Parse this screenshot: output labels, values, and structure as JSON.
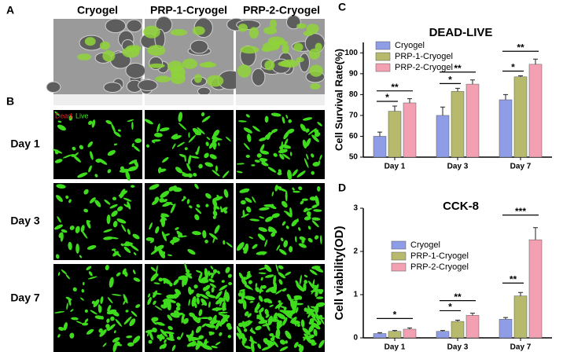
{
  "figure": {
    "panel_labels": [
      "A",
      "B",
      "C",
      "D"
    ],
    "columns": [
      "Cryogel",
      "PRP-1-Cryogel",
      "PRP-2-Cryogel"
    ],
    "rows": [
      "Day 1",
      "Day 3",
      "Day 7"
    ],
    "stain_labels": [
      "Dead",
      "Live"
    ]
  },
  "chart_data": [
    {
      "type": "bar",
      "title": "DEAD-LIVE",
      "y_label": "Cell Survival Rate(%)",
      "categories": [
        "Day 1",
        "Day 3",
        "Day 7"
      ],
      "series": [
        {
          "name": "Cryogel",
          "color": "#8e9de6",
          "values": [
            60,
            70,
            77.5
          ],
          "errors": [
            2,
            4,
            2.5
          ]
        },
        {
          "name": "PRP-1-Cryogel",
          "color": "#b7b96c",
          "values": [
            72,
            81.5,
            88.5
          ],
          "errors": [
            2.5,
            1.5,
            0.5
          ]
        },
        {
          "name": "PRP-2-Cryogel",
          "color": "#f3a1b2",
          "values": [
            76,
            85,
            94.5
          ],
          "errors": [
            2,
            2,
            2.5
          ]
        }
      ],
      "ylim": [
        50,
        105
      ],
      "yticks": [
        50,
        60,
        70,
        80,
        90,
        100
      ],
      "annotations": [
        {
          "text": "*",
          "category": "Day 1",
          "between": [
            "Cryogel",
            "PRP-1-Cryogel"
          ]
        },
        {
          "text": "**",
          "category": "Day 1",
          "between": [
            "Cryogel",
            "PRP-2-Cryogel"
          ]
        },
        {
          "text": "*",
          "category": "Day 3",
          "between": [
            "Cryogel",
            "PRP-1-Cryogel"
          ]
        },
        {
          "text": "**",
          "category": "Day 3",
          "between": [
            "Cryogel",
            "PRP-2-Cryogel"
          ]
        },
        {
          "text": "*",
          "category": "Day 7",
          "between": [
            "Cryogel",
            "PRP-1-Cryogel"
          ]
        },
        {
          "text": "**",
          "category": "Day 7",
          "between": [
            "Cryogel",
            "PRP-2-Cryogel"
          ]
        }
      ]
    },
    {
      "type": "bar",
      "title": "CCK-8",
      "y_label": "Cell viability(OD)",
      "categories": [
        "Day 1",
        "Day 3",
        "Day 7"
      ],
      "series": [
        {
          "name": "Cryogel",
          "color": "#8e9de6",
          "values": [
            0.1,
            0.15,
            0.43
          ],
          "errors": [
            0.02,
            0.02,
            0.04
          ]
        },
        {
          "name": "PRP-1-Cryogel",
          "color": "#b7b96c",
          "values": [
            0.15,
            0.38,
            0.97
          ],
          "errors": [
            0.02,
            0.03,
            0.08
          ]
        },
        {
          "name": "PRP-2-Cryogel",
          "color": "#f3a1b2",
          "values": [
            0.2,
            0.52,
            2.27
          ],
          "errors": [
            0.03,
            0.05,
            0.28
          ]
        }
      ],
      "ylim": [
        0,
        3
      ],
      "yticks": [
        0,
        1,
        2,
        3
      ],
      "annotations": [
        {
          "text": "*",
          "category": "Day 1",
          "between": [
            "Cryogel",
            "PRP-2-Cryogel"
          ]
        },
        {
          "text": "*",
          "category": "Day 3",
          "between": [
            "Cryogel",
            "PRP-1-Cryogel"
          ]
        },
        {
          "text": "**",
          "category": "Day 3",
          "between": [
            "Cryogel",
            "PRP-2-Cryogel"
          ]
        },
        {
          "text": "**",
          "category": "Day 7",
          "between": [
            "Cryogel",
            "PRP-1-Cryogel"
          ]
        },
        {
          "text": "***",
          "category": "Day 7",
          "between": [
            "Cryogel",
            "PRP-2-Cryogel"
          ]
        }
      ]
    }
  ]
}
